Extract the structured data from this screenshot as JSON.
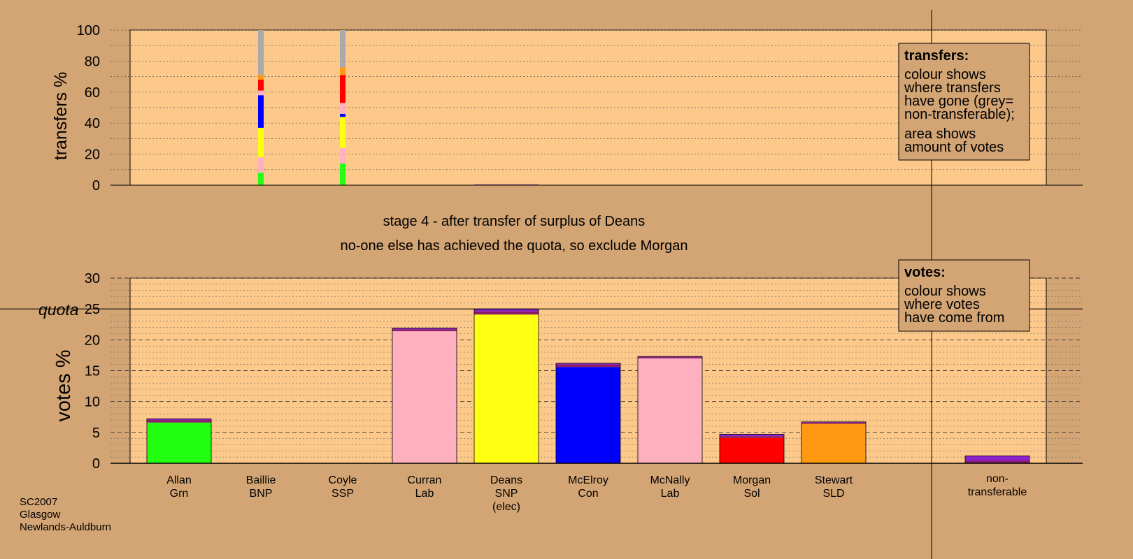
{
  "stage_title": "stage 4 - after transfer of surplus of Deans",
  "stage_subtitle": "no-one else has achieved the quota, so exclude Morgan",
  "footer": {
    "line1": "SC2007",
    "line2": "Glasgow",
    "line3": "Newlands-Auldburn"
  },
  "transfers_legend": {
    "title": "transfers:",
    "lines": [
      "colour shows",
      "where transfers",
      "have gone (grey=",
      "non-transferable);"
    ],
    "lines2": [
      "area shows",
      "amount of votes"
    ]
  },
  "votes_legend": {
    "title": "votes:",
    "lines": [
      "colour shows",
      "where votes",
      "have come from"
    ]
  },
  "colors": {
    "background": "#d4a574",
    "plot_bg": "#fdc98a",
    "Grn": "#22ff11",
    "BNP": "#ff9ee0",
    "SSP": "#ffb0c0",
    "Lab": "#ffb0c0",
    "SNP": "#ffff11",
    "Con": "#0000ff",
    "Sol": "#ff0000",
    "SLD": "#ff9911",
    "nontransferable": "#aaaaaa",
    "transfer_band": "#8a1a6a",
    "purple": "#8a22cc",
    "dark": "#7a1a2a"
  },
  "chart_data": [
    {
      "type": "bar",
      "title": "",
      "ylabel": "transfers %",
      "ylim": [
        0,
        100
      ],
      "yticks": [
        0,
        20,
        40,
        60,
        80,
        100
      ],
      "columns": [
        {
          "candidate": "Baillie",
          "segments": [
            {
              "to": "Grn",
              "value": 8,
              "color": "#22ff11"
            },
            {
              "to": "Lab",
              "value": 10,
              "color": "#ffb0c0"
            },
            {
              "to": "SNP",
              "value": 19,
              "color": "#ffff11"
            },
            {
              "to": "Con",
              "value": 21,
              "color": "#0000ff"
            },
            {
              "to": "Lab2",
              "value": 3,
              "color": "#ffb0c0"
            },
            {
              "to": "Sol",
              "value": 7,
              "color": "#ff0000"
            },
            {
              "to": "SLD",
              "value": 3,
              "color": "#ff9911"
            },
            {
              "to": "non-transferable",
              "value": 29,
              "color": "#aaaaaa"
            }
          ]
        },
        {
          "candidate": "Coyle",
          "segments": [
            {
              "to": "Grn",
              "value": 14,
              "color": "#22ff11"
            },
            {
              "to": "Lab",
              "value": 10,
              "color": "#ffb0c0"
            },
            {
              "to": "SNP",
              "value": 20,
              "color": "#ffff11"
            },
            {
              "to": "Con",
              "value": 2,
              "color": "#0000ff"
            },
            {
              "to": "Lab2",
              "value": 7,
              "color": "#ffb0c0"
            },
            {
              "to": "Sol",
              "value": 18,
              "color": "#ff0000"
            },
            {
              "to": "SLD",
              "value": 5,
              "color": "#ff9911"
            },
            {
              "to": "non-transferable",
              "value": 24,
              "color": "#aaaaaa"
            }
          ]
        }
      ]
    },
    {
      "type": "bar",
      "title": "",
      "ylabel": "votes %",
      "ylim": [
        0,
        30
      ],
      "yticks": [
        0,
        5,
        10,
        15,
        20,
        25,
        30
      ],
      "quota": 25,
      "quota_label": "quota",
      "categories": [
        {
          "name": "Allan",
          "party": "Grn",
          "extra": ""
        },
        {
          "name": "Baillie",
          "party": "BNP",
          "extra": ""
        },
        {
          "name": "Coyle",
          "party": "SSP",
          "extra": ""
        },
        {
          "name": "Curran",
          "party": "Lab",
          "extra": ""
        },
        {
          "name": "Deans",
          "party": "SNP",
          "extra": "(elec)"
        },
        {
          "name": "McElroy",
          "party": "Con",
          "extra": ""
        },
        {
          "name": "McNally",
          "party": "Lab",
          "extra": ""
        },
        {
          "name": "Morgan",
          "party": "Sol",
          "extra": ""
        },
        {
          "name": "Stewart",
          "party": "SLD",
          "extra": ""
        },
        {
          "name": "non-",
          "party": "transferable",
          "extra": ""
        }
      ],
      "series": [
        {
          "name": "first",
          "values": [
            6.6,
            0,
            0,
            21.4,
            24.1,
            15.6,
            17.0,
            4.1,
            6.4,
            0.4
          ],
          "colors": [
            "#22ff11",
            "#ffb0c0",
            "#ffb0c0",
            "#ffb0c0",
            "#ffff11",
            "#0000ff",
            "#ffb0c0",
            "#ff0000",
            "#ff9911",
            "#8a1a6a"
          ]
        },
        {
          "name": "transfer1",
          "values": [
            0.4,
            0,
            0,
            0.3,
            0.5,
            0.4,
            0.2,
            0.3,
            0.2,
            0.5
          ],
          "colors": [
            "#8a1a6a",
            "#8a1a6a",
            "#8a1a6a",
            "#8a1a6a",
            "#8a1a6a",
            "#8a1a6a",
            "#8a1a6a",
            "#8a1a6a",
            "#8a1a6a",
            "#8a22cc"
          ]
        },
        {
          "name": "transfer2",
          "values": [
            0.2,
            0,
            0,
            0.2,
            0.4,
            0.2,
            0.1,
            0.3,
            0.1,
            0.3
          ],
          "colors": [
            "#8a22cc",
            "#8a22cc",
            "#8a22cc",
            "#8a22cc",
            "#8a22cc",
            "#8a22cc",
            "#8a22cc",
            "#8a22cc",
            "#8a22cc",
            "#8a22cc"
          ]
        }
      ]
    }
  ]
}
